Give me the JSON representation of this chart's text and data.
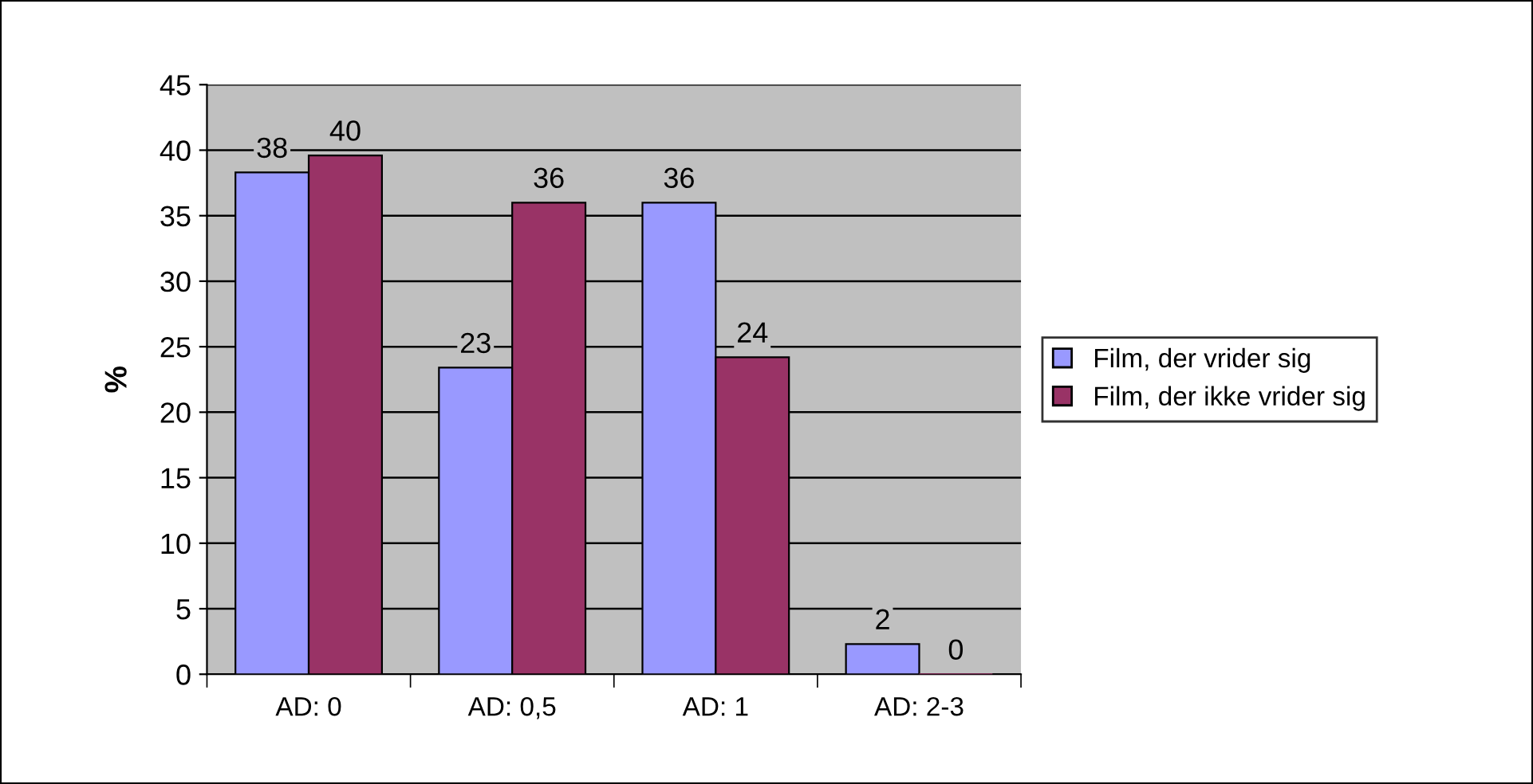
{
  "chart_data": {
    "type": "bar",
    "ylabel": "%",
    "categories": [
      "AD: 0",
      "AD: 0,5",
      "AD: 1",
      "AD: 2-3"
    ],
    "series": [
      {
        "name": "Film, der vrider sig",
        "color": "#9999ff",
        "values": [
          38.3,
          23.4,
          36.0,
          2.3
        ],
        "value_labels": [
          "38",
          "23",
          "36",
          "2"
        ]
      },
      {
        "name": "Film, der ikke vrider sig",
        "color": "#993366",
        "values": [
          39.6,
          36.0,
          24.2,
          0
        ],
        "value_labels": [
          "40",
          "36",
          "24",
          "0"
        ]
      }
    ],
    "ylim": [
      0,
      45
    ],
    "yticks": [
      0,
      5,
      10,
      15,
      20,
      25,
      30,
      35,
      40,
      45
    ],
    "grid": "y",
    "legend": "right"
  }
}
